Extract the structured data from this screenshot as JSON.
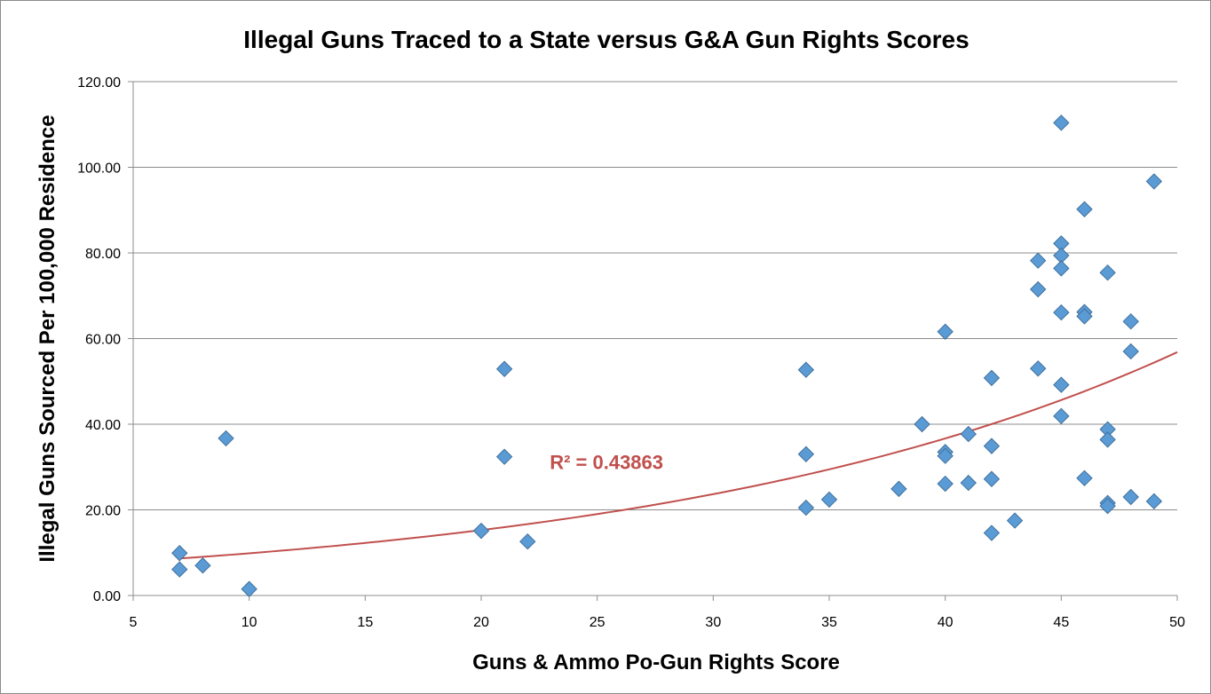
{
  "chart_data": {
    "type": "scatter",
    "title": "Illegal Guns Traced to a State  versus G&A Gun Rights Scores",
    "xlabel": "Guns & Ammo Po-Gun Rights Score",
    "ylabel": "Illegal Guns Sourced Per 100,000 Residence",
    "xlim": [
      5,
      50
    ],
    "ylim": [
      0,
      120
    ],
    "xticks": [
      "5",
      "10",
      "15",
      "20",
      "25",
      "30",
      "35",
      "40",
      "45",
      "50"
    ],
    "yticks": [
      "0.00",
      "20.00",
      "40.00",
      "60.00",
      "80.00",
      "100.00",
      "120.00"
    ],
    "grid": "horizontal",
    "legend": "none",
    "marker_color": "#5b9bd5",
    "trendline_color": "#c0504d",
    "trendline": {
      "type": "exponential",
      "a": 6.36,
      "b": 0.0438,
      "x_range": [
        7,
        50
      ],
      "r2_label": "R² = 0.43863"
    },
    "points": [
      {
        "x": 7,
        "y": 9.9
      },
      {
        "x": 7,
        "y": 6.1
      },
      {
        "x": 8,
        "y": 7.0
      },
      {
        "x": 9,
        "y": 36.7
      },
      {
        "x": 10,
        "y": 1.5
      },
      {
        "x": 20,
        "y": 15.1
      },
      {
        "x": 21,
        "y": 52.9
      },
      {
        "x": 21,
        "y": 32.4
      },
      {
        "x": 22,
        "y": 12.6
      },
      {
        "x": 34,
        "y": 52.7
      },
      {
        "x": 34,
        "y": 33.0
      },
      {
        "x": 34,
        "y": 20.5
      },
      {
        "x": 35,
        "y": 22.4
      },
      {
        "x": 38,
        "y": 24.9
      },
      {
        "x": 39,
        "y": 40.0
      },
      {
        "x": 40,
        "y": 61.6
      },
      {
        "x": 40,
        "y": 33.5
      },
      {
        "x": 40,
        "y": 32.6
      },
      {
        "x": 40,
        "y": 26.1
      },
      {
        "x": 41,
        "y": 37.7
      },
      {
        "x": 41,
        "y": 26.3
      },
      {
        "x": 42,
        "y": 50.8
      },
      {
        "x": 42,
        "y": 34.9
      },
      {
        "x": 42,
        "y": 27.2
      },
      {
        "x": 42,
        "y": 14.6
      },
      {
        "x": 43,
        "y": 17.5
      },
      {
        "x": 44,
        "y": 78.2
      },
      {
        "x": 44,
        "y": 71.5
      },
      {
        "x": 44,
        "y": 53.0
      },
      {
        "x": 45,
        "y": 110.4
      },
      {
        "x": 45,
        "y": 82.2
      },
      {
        "x": 45,
        "y": 79.4
      },
      {
        "x": 45,
        "y": 76.4
      },
      {
        "x": 45,
        "y": 66.1
      },
      {
        "x": 45,
        "y": 49.2
      },
      {
        "x": 45,
        "y": 41.9
      },
      {
        "x": 46,
        "y": 90.2
      },
      {
        "x": 46,
        "y": 66.2
      },
      {
        "x": 46,
        "y": 65.2
      },
      {
        "x": 46,
        "y": 27.4
      },
      {
        "x": 47,
        "y": 75.4
      },
      {
        "x": 47,
        "y": 38.8
      },
      {
        "x": 47,
        "y": 36.4
      },
      {
        "x": 47,
        "y": 21.6
      },
      {
        "x": 47,
        "y": 20.9
      },
      {
        "x": 48,
        "y": 64.0
      },
      {
        "x": 48,
        "y": 57.0
      },
      {
        "x": 48,
        "y": 23.0
      },
      {
        "x": 49,
        "y": 96.7
      },
      {
        "x": 49,
        "y": 22.0
      }
    ]
  }
}
